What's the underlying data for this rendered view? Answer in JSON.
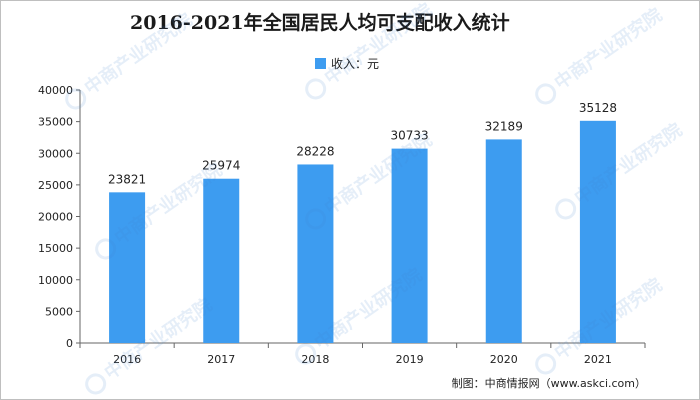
{
  "chart_data": {
    "type": "bar",
    "title": "2016-2021年全国居民人均可支配收入统计",
    "legend_label": "收入：元",
    "legend_position": "top-center",
    "categories": [
      "2016",
      "2017",
      "2018",
      "2019",
      "2020",
      "2021"
    ],
    "series": [
      {
        "name": "收入：元",
        "values": [
          23821,
          25974,
          28228,
          30733,
          32189,
          35128
        ]
      }
    ],
    "y_ticks": [
      "0",
      "5000",
      "10000",
      "15000",
      "20000",
      "25000",
      "30000",
      "35000",
      "40000"
    ],
    "ylim": [
      0,
      40000
    ],
    "grid": false,
    "bar_color": "#3d9cf0"
  },
  "credit": "制图：中商情报网（www.askci.com）",
  "watermark": "中商产业研究院"
}
